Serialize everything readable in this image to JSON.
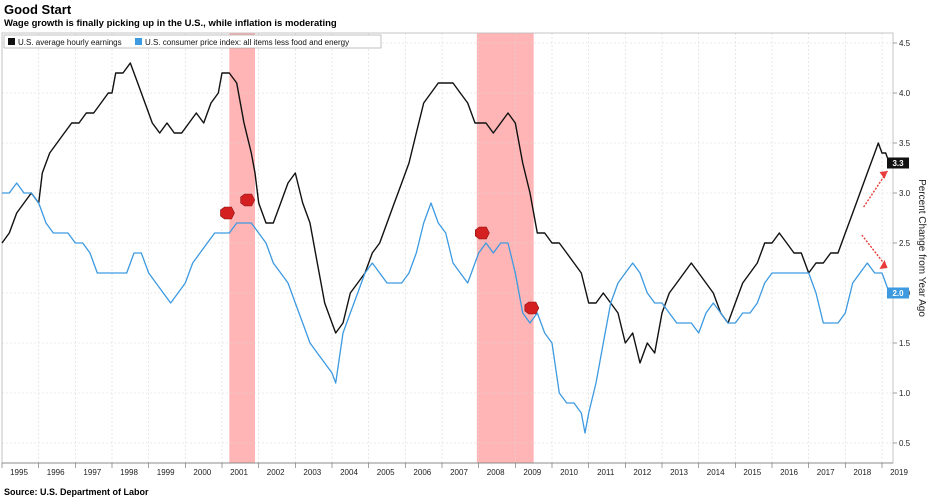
{
  "header": {
    "title": "Good Start",
    "subtitle": "Wage growth is finally picking up in the U.S., while inflation is moderating"
  },
  "source": "Source: U.S. Department of Labor",
  "colors": {
    "wages": "#111111",
    "cpi": "#3d9ae0",
    "recession": "#ff9c9c",
    "marker": "#d42020",
    "arrow": "#e83c3c",
    "grid": "#d8d8d8"
  },
  "chart_data": {
    "type": "line",
    "xlabel": "",
    "ylabel": "Percent Change from Year Ago",
    "ylim": [
      0.3,
      4.6
    ],
    "y_ticks": [
      "0.5",
      "1.0",
      "1.5",
      "2.0",
      "2.5",
      "3.0",
      "3.5",
      "4.0",
      "4.5"
    ],
    "x_ticks": [
      "1995",
      "1996",
      "1997",
      "1998",
      "1999",
      "2000",
      "2001",
      "2002",
      "2003",
      "2004",
      "2005",
      "2006",
      "2007",
      "2008",
      "2009",
      "2010",
      "2011",
      "2012",
      "2013",
      "2014",
      "2015",
      "2016",
      "2017",
      "2018",
      "2019"
    ],
    "xlim": [
      1995.0,
      2019.3
    ],
    "y_axis_position": "right",
    "grid": true,
    "legend_position": "top-left",
    "recessions": [
      [
        2001.2,
        2001.9
      ],
      [
        2007.95,
        2009.5
      ]
    ],
    "series": [
      {
        "name": "U.S. average hourly earnings",
        "last_value_label": "3.3",
        "points": [
          [
            1995.0,
            2.5
          ],
          [
            1995.2,
            2.6
          ],
          [
            1995.4,
            2.8
          ],
          [
            1995.6,
            2.9
          ],
          [
            1995.8,
            3.0
          ],
          [
            1996.0,
            2.9
          ],
          [
            1996.1,
            3.2
          ],
          [
            1996.3,
            3.4
          ],
          [
            1996.5,
            3.5
          ],
          [
            1996.7,
            3.6
          ],
          [
            1996.9,
            3.7
          ],
          [
            1997.1,
            3.7
          ],
          [
            1997.3,
            3.8
          ],
          [
            1997.5,
            3.8
          ],
          [
            1997.7,
            3.9
          ],
          [
            1997.9,
            4.0
          ],
          [
            1998.0,
            4.0
          ],
          [
            1998.1,
            4.2
          ],
          [
            1998.3,
            4.2
          ],
          [
            1998.5,
            4.3
          ],
          [
            1998.7,
            4.1
          ],
          [
            1998.9,
            3.9
          ],
          [
            1999.1,
            3.7
          ],
          [
            1999.3,
            3.6
          ],
          [
            1999.5,
            3.7
          ],
          [
            1999.7,
            3.6
          ],
          [
            1999.9,
            3.6
          ],
          [
            2000.1,
            3.7
          ],
          [
            2000.3,
            3.8
          ],
          [
            2000.5,
            3.7
          ],
          [
            2000.7,
            3.9
          ],
          [
            2000.9,
            4.0
          ],
          [
            2001.0,
            4.2
          ],
          [
            2001.2,
            4.2
          ],
          [
            2001.4,
            4.1
          ],
          [
            2001.6,
            3.7
          ],
          [
            2001.8,
            3.4
          ],
          [
            2001.9,
            3.2
          ],
          [
            2002.0,
            2.9
          ],
          [
            2002.2,
            2.7
          ],
          [
            2002.4,
            2.7
          ],
          [
            2002.6,
            2.9
          ],
          [
            2002.8,
            3.1
          ],
          [
            2003.0,
            3.2
          ],
          [
            2003.2,
            2.9
          ],
          [
            2003.4,
            2.7
          ],
          [
            2003.6,
            2.3
          ],
          [
            2003.8,
            1.9
          ],
          [
            2004.0,
            1.7
          ],
          [
            2004.1,
            1.6
          ],
          [
            2004.3,
            1.7
          ],
          [
            2004.5,
            2.0
          ],
          [
            2004.7,
            2.1
          ],
          [
            2004.9,
            2.2
          ],
          [
            2005.1,
            2.4
          ],
          [
            2005.3,
            2.5
          ],
          [
            2005.5,
            2.7
          ],
          [
            2005.7,
            2.9
          ],
          [
            2005.9,
            3.1
          ],
          [
            2006.1,
            3.3
          ],
          [
            2006.3,
            3.6
          ],
          [
            2006.5,
            3.9
          ],
          [
            2006.7,
            4.0
          ],
          [
            2006.9,
            4.1
          ],
          [
            2007.1,
            4.1
          ],
          [
            2007.3,
            4.1
          ],
          [
            2007.5,
            4.0
          ],
          [
            2007.7,
            3.9
          ],
          [
            2007.9,
            3.7
          ],
          [
            2008.0,
            3.7
          ],
          [
            2008.2,
            3.7
          ],
          [
            2008.4,
            3.6
          ],
          [
            2008.6,
            3.7
          ],
          [
            2008.8,
            3.8
          ],
          [
            2009.0,
            3.7
          ],
          [
            2009.2,
            3.3
          ],
          [
            2009.4,
            3.0
          ],
          [
            2009.6,
            2.6
          ],
          [
            2009.8,
            2.6
          ],
          [
            2010.0,
            2.5
          ],
          [
            2010.2,
            2.5
          ],
          [
            2010.4,
            2.4
          ],
          [
            2010.6,
            2.3
          ],
          [
            2010.8,
            2.2
          ],
          [
            2011.0,
            1.9
          ],
          [
            2011.2,
            1.9
          ],
          [
            2011.4,
            2.0
          ],
          [
            2011.6,
            1.9
          ],
          [
            2011.8,
            1.8
          ],
          [
            2012.0,
            1.5
          ],
          [
            2012.2,
            1.6
          ],
          [
            2012.4,
            1.3
          ],
          [
            2012.6,
            1.5
          ],
          [
            2012.8,
            1.4
          ],
          [
            2013.0,
            1.8
          ],
          [
            2013.2,
            2.0
          ],
          [
            2013.4,
            2.1
          ],
          [
            2013.6,
            2.2
          ],
          [
            2013.8,
            2.3
          ],
          [
            2014.0,
            2.2
          ],
          [
            2014.2,
            2.1
          ],
          [
            2014.4,
            2.0
          ],
          [
            2014.6,
            1.8
          ],
          [
            2014.8,
            1.7
          ],
          [
            2015.0,
            1.9
          ],
          [
            2015.2,
            2.1
          ],
          [
            2015.4,
            2.2
          ],
          [
            2015.6,
            2.3
          ],
          [
            2015.8,
            2.5
          ],
          [
            2016.0,
            2.5
          ],
          [
            2016.2,
            2.6
          ],
          [
            2016.4,
            2.5
          ],
          [
            2016.6,
            2.4
          ],
          [
            2016.8,
            2.4
          ],
          [
            2017.0,
            2.2
          ],
          [
            2017.2,
            2.3
          ],
          [
            2017.4,
            2.3
          ],
          [
            2017.6,
            2.4
          ],
          [
            2017.8,
            2.4
          ],
          [
            2018.0,
            2.6
          ],
          [
            2018.2,
            2.8
          ],
          [
            2018.4,
            3.0
          ],
          [
            2018.6,
            3.2
          ],
          [
            2018.8,
            3.4
          ],
          [
            2018.9,
            3.5
          ],
          [
            2019.0,
            3.4
          ],
          [
            2019.1,
            3.4
          ],
          [
            2019.2,
            3.3
          ]
        ]
      },
      {
        "name": "U.S. consumer price index: all items less food and energy",
        "last_value_label": "2.0",
        "points": [
          [
            1995.0,
            3.0
          ],
          [
            1995.2,
            3.0
          ],
          [
            1995.4,
            3.1
          ],
          [
            1995.6,
            3.0
          ],
          [
            1995.8,
            3.0
          ],
          [
            1996.0,
            2.9
          ],
          [
            1996.2,
            2.7
          ],
          [
            1996.4,
            2.6
          ],
          [
            1996.6,
            2.6
          ],
          [
            1996.8,
            2.6
          ],
          [
            1997.0,
            2.5
          ],
          [
            1997.2,
            2.5
          ],
          [
            1997.4,
            2.4
          ],
          [
            1997.6,
            2.2
          ],
          [
            1997.8,
            2.2
          ],
          [
            1998.0,
            2.2
          ],
          [
            1998.2,
            2.2
          ],
          [
            1998.4,
            2.2
          ],
          [
            1998.6,
            2.4
          ],
          [
            1998.8,
            2.4
          ],
          [
            1999.0,
            2.2
          ],
          [
            1999.2,
            2.1
          ],
          [
            1999.4,
            2.0
          ],
          [
            1999.6,
            1.9
          ],
          [
            1999.8,
            2.0
          ],
          [
            2000.0,
            2.1
          ],
          [
            2000.2,
            2.3
          ],
          [
            2000.4,
            2.4
          ],
          [
            2000.6,
            2.5
          ],
          [
            2000.8,
            2.6
          ],
          [
            2001.0,
            2.6
          ],
          [
            2001.2,
            2.6
          ],
          [
            2001.4,
            2.7
          ],
          [
            2001.6,
            2.7
          ],
          [
            2001.8,
            2.7
          ],
          [
            2002.0,
            2.6
          ],
          [
            2002.2,
            2.5
          ],
          [
            2002.4,
            2.3
          ],
          [
            2002.6,
            2.2
          ],
          [
            2002.8,
            2.1
          ],
          [
            2003.0,
            1.9
          ],
          [
            2003.2,
            1.7
          ],
          [
            2003.4,
            1.5
          ],
          [
            2003.6,
            1.4
          ],
          [
            2003.8,
            1.3
          ],
          [
            2004.0,
            1.2
          ],
          [
            2004.1,
            1.1
          ],
          [
            2004.3,
            1.6
          ],
          [
            2004.5,
            1.8
          ],
          [
            2004.7,
            2.0
          ],
          [
            2004.9,
            2.2
          ],
          [
            2005.1,
            2.3
          ],
          [
            2005.3,
            2.2
          ],
          [
            2005.5,
            2.1
          ],
          [
            2005.7,
            2.1
          ],
          [
            2005.9,
            2.1
          ],
          [
            2006.1,
            2.2
          ],
          [
            2006.3,
            2.4
          ],
          [
            2006.5,
            2.7
          ],
          [
            2006.7,
            2.9
          ],
          [
            2006.9,
            2.7
          ],
          [
            2007.1,
            2.6
          ],
          [
            2007.3,
            2.3
          ],
          [
            2007.5,
            2.2
          ],
          [
            2007.7,
            2.1
          ],
          [
            2007.9,
            2.3
          ],
          [
            2008.0,
            2.4
          ],
          [
            2008.2,
            2.5
          ],
          [
            2008.4,
            2.4
          ],
          [
            2008.6,
            2.5
          ],
          [
            2008.8,
            2.5
          ],
          [
            2009.0,
            2.2
          ],
          [
            2009.2,
            1.8
          ],
          [
            2009.4,
            1.7
          ],
          [
            2009.6,
            1.8
          ],
          [
            2009.8,
            1.6
          ],
          [
            2010.0,
            1.5
          ],
          [
            2010.2,
            1.0
          ],
          [
            2010.4,
            0.9
          ],
          [
            2010.6,
            0.9
          ],
          [
            2010.8,
            0.8
          ],
          [
            2010.9,
            0.6
          ],
          [
            2011.0,
            0.8
          ],
          [
            2011.2,
            1.1
          ],
          [
            2011.4,
            1.5
          ],
          [
            2011.6,
            1.9
          ],
          [
            2011.8,
            2.1
          ],
          [
            2012.0,
            2.2
          ],
          [
            2012.2,
            2.3
          ],
          [
            2012.4,
            2.2
          ],
          [
            2012.6,
            2.0
          ],
          [
            2012.8,
            1.9
          ],
          [
            2013.0,
            1.9
          ],
          [
            2013.2,
            1.8
          ],
          [
            2013.4,
            1.7
          ],
          [
            2013.6,
            1.7
          ],
          [
            2013.8,
            1.7
          ],
          [
            2014.0,
            1.6
          ],
          [
            2014.2,
            1.8
          ],
          [
            2014.4,
            1.9
          ],
          [
            2014.6,
            1.8
          ],
          [
            2014.8,
            1.7
          ],
          [
            2015.0,
            1.7
          ],
          [
            2015.2,
            1.8
          ],
          [
            2015.4,
            1.8
          ],
          [
            2015.6,
            1.9
          ],
          [
            2015.8,
            2.1
          ],
          [
            2016.0,
            2.2
          ],
          [
            2016.2,
            2.2
          ],
          [
            2016.4,
            2.2
          ],
          [
            2016.6,
            2.2
          ],
          [
            2016.8,
            2.2
          ],
          [
            2017.0,
            2.2
          ],
          [
            2017.2,
            2.0
          ],
          [
            2017.4,
            1.7
          ],
          [
            2017.6,
            1.7
          ],
          [
            2017.8,
            1.7
          ],
          [
            2018.0,
            1.8
          ],
          [
            2018.2,
            2.1
          ],
          [
            2018.4,
            2.2
          ],
          [
            2018.6,
            2.3
          ],
          [
            2018.8,
            2.2
          ],
          [
            2019.0,
            2.2
          ],
          [
            2019.1,
            2.1
          ],
          [
            2019.2,
            2.0
          ]
        ]
      }
    ]
  }
}
